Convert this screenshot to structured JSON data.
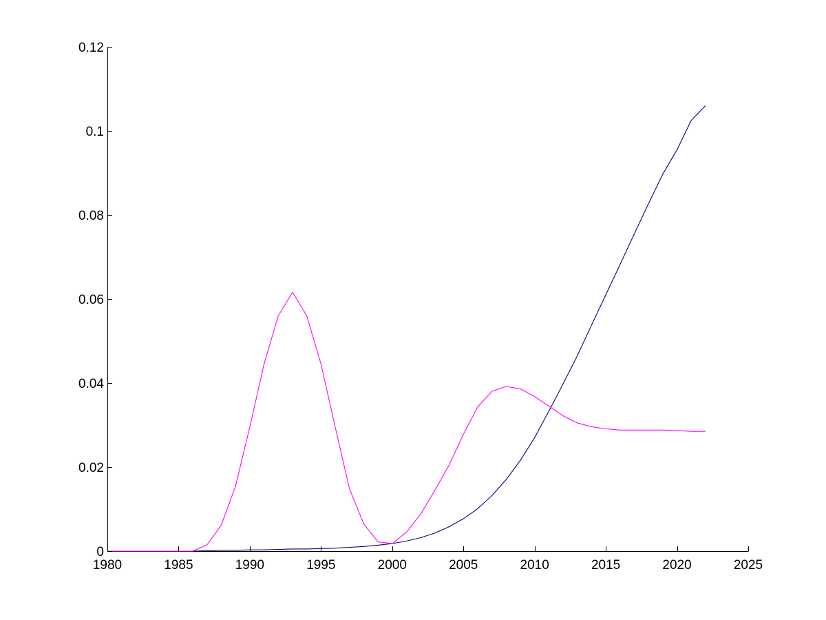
{
  "chart_data": {
    "type": "line",
    "title": "",
    "xlabel": "",
    "ylabel": "",
    "xlim": [
      1980,
      2025
    ],
    "ylim": [
      0,
      0.12
    ],
    "grid": false,
    "xticks": [
      1980,
      1985,
      1990,
      1995,
      2000,
      2005,
      2010,
      2015,
      2020,
      2025
    ],
    "xtick_labels": [
      "1980",
      "1985",
      "1990",
      "1995",
      "2000",
      "2005",
      "2010",
      "2015",
      "2020",
      "2025"
    ],
    "yticks": [
      0,
      0.02,
      0.04,
      0.06,
      0.08,
      0.1,
      0.12
    ],
    "ytick_labels": [
      "0",
      "0.02",
      "0.04",
      "0.06",
      "0.08",
      "0.1",
      "0.12"
    ],
    "x": [
      1980,
      1981,
      1982,
      1983,
      1984,
      1985,
      1986,
      1987,
      1988,
      1989,
      1990,
      1991,
      1992,
      1993,
      1994,
      1995,
      1996,
      1997,
      1998,
      1999,
      2000,
      2001,
      2002,
      2003,
      2004,
      2005,
      2006,
      2007,
      2008,
      2009,
      2010,
      2011,
      2012,
      2013,
      2014,
      2015,
      2016,
      2017,
      2018,
      2019,
      2020,
      2021,
      2022
    ],
    "series": [
      {
        "color": "#00007f",
        "values": [
          0,
          0,
          0,
          0,
          0,
          0,
          0,
          0.0001,
          0.0002,
          0.0002,
          0.0003,
          0.0003,
          0.0004,
          0.0005,
          0.0005,
          0.0006,
          0.0007,
          0.0009,
          0.0011,
          0.0014,
          0.0018,
          0.0024,
          0.0032,
          0.0043,
          0.0058,
          0.0077,
          0.0101,
          0.0132,
          0.017,
          0.0216,
          0.027,
          0.0333,
          0.0398,
          0.0465,
          0.0538,
          0.061,
          0.0682,
          0.0755,
          0.0827,
          0.0897,
          0.0955,
          0.1025,
          0.106
        ]
      },
      {
        "color": "#ff00ff",
        "values": [
          0,
          0,
          0,
          0,
          0,
          0,
          0,
          0.0015,
          0.0062,
          0.0155,
          0.0295,
          0.0445,
          0.056,
          0.0616,
          0.056,
          0.0445,
          0.0295,
          0.0148,
          0.0065,
          0.0022,
          0.0018,
          0.0045,
          0.0088,
          0.0145,
          0.0205,
          0.0278,
          0.0343,
          0.038,
          0.0392,
          0.0386,
          0.0368,
          0.0345,
          0.0322,
          0.0305,
          0.0296,
          0.0291,
          0.0288,
          0.0288,
          0.0288,
          0.0288,
          0.0287,
          0.0285,
          0.0285
        ]
      }
    ]
  }
}
